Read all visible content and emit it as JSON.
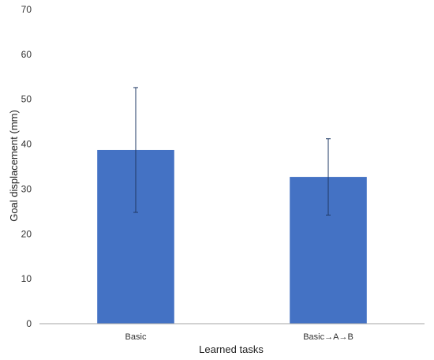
{
  "chart_data": {
    "type": "bar",
    "title": "",
    "xlabel": "Learned tasks",
    "ylabel": "Goal displacement (mm)",
    "categories": [
      "Basic",
      "Basic→A→B"
    ],
    "values": [
      38.7,
      32.7
    ],
    "error_low": [
      24.8,
      24.2
    ],
    "error_high": [
      52.6,
      41.2
    ],
    "ylim": [
      0,
      70
    ],
    "yticks": [
      0,
      10,
      20,
      30,
      40,
      50,
      60,
      70
    ],
    "ytick_labels": [
      "0",
      "10",
      "20",
      "30",
      "40",
      "50",
      "60",
      "70"
    ],
    "grid": false,
    "legend": "none",
    "bar_color": "#4472C4",
    "error_bar_color": "#1F3864",
    "axis_color": "#A6A6A6"
  }
}
